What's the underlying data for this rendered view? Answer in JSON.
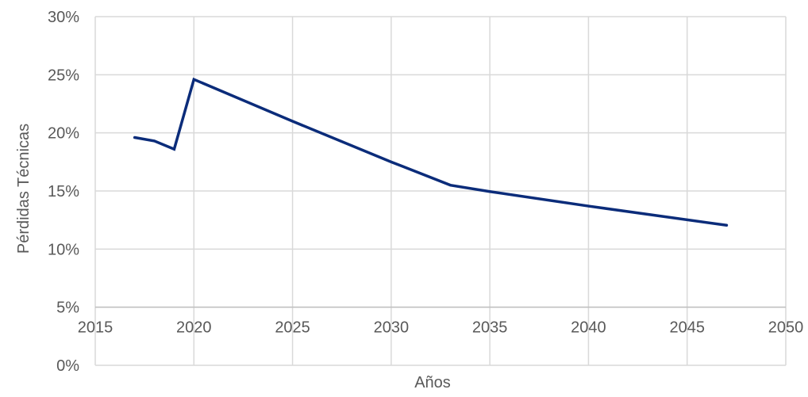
{
  "chart_data": {
    "type": "line",
    "xlabel": "Años",
    "ylabel": "Pérdidas Técnicas",
    "xlim": [
      2015,
      2050
    ],
    "ylim": [
      0,
      30
    ],
    "x_ticks": [
      "2015",
      "2020",
      "2025",
      "2030",
      "2035",
      "2040",
      "2045",
      "2050"
    ],
    "y_ticks": [
      "0%",
      "5%",
      "10%",
      "15%",
      "20%",
      "25%",
      "30%"
    ],
    "x_axis_crosses_at": 5,
    "grid": true,
    "legend": "none",
    "series": [
      {
        "color": "#0b2c7a",
        "points": [
          {
            "x": 2017,
            "y": 19.6
          },
          {
            "x": 2018,
            "y": 19.3
          },
          {
            "x": 2019,
            "y": 18.6
          },
          {
            "x": 2020,
            "y": 24.6
          },
          {
            "x": 2025,
            "y": 21.0
          },
          {
            "x": 2030,
            "y": 17.5
          },
          {
            "x": 2033,
            "y": 15.5
          },
          {
            "x": 2035,
            "y": 14.95
          },
          {
            "x": 2040,
            "y": 13.7
          },
          {
            "x": 2047,
            "y": 12.05
          }
        ]
      }
    ]
  }
}
